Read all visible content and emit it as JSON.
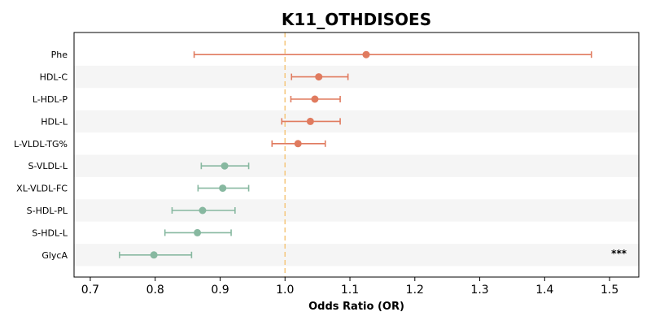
{
  "chart_data": {
    "type": "scatter",
    "subtype": "forest-plot",
    "title": "K11_OTHDISOES",
    "xlabel": "Odds Ratio (OR)",
    "ylabel": "",
    "xlim": [
      0.675,
      1.545
    ],
    "xticks": [
      0.7,
      0.8,
      0.9,
      1.0,
      1.1,
      1.2,
      1.3,
      1.4,
      1.5
    ],
    "xtick_labels": [
      "0.7",
      "0.8",
      "0.9",
      "1.0",
      "1.1",
      "1.2",
      "1.3",
      "1.4",
      "1.5"
    ],
    "reference_line": 1.0,
    "reference_line_color": "#f5c77e",
    "grid": false,
    "colors": {
      "positive": "#e07b5f",
      "negative": "#87b8a0",
      "band": "#f5f5f5"
    },
    "categories": [
      "Phe",
      "HDL-C",
      "L-HDL-P",
      "HDL-L",
      "L-VLDL-TG%",
      "S-VLDL-L",
      "XL-VLDL-FC",
      "S-HDL-PL",
      "S-HDL-L",
      "GlycA"
    ],
    "or": [
      1.125,
      1.052,
      1.046,
      1.039,
      1.02,
      0.907,
      0.904,
      0.873,
      0.865,
      0.798
    ],
    "ci_low": [
      0.86,
      1.01,
      1.009,
      0.995,
      0.98,
      0.871,
      0.866,
      0.826,
      0.815,
      0.745
    ],
    "ci_high": [
      1.472,
      1.097,
      1.085,
      1.085,
      1.062,
      0.944,
      0.944,
      0.923,
      0.917,
      0.856
    ],
    "annotations": [
      "",
      "",
      "",
      "",
      "",
      "",
      "",
      "",
      "",
      "***"
    ]
  }
}
